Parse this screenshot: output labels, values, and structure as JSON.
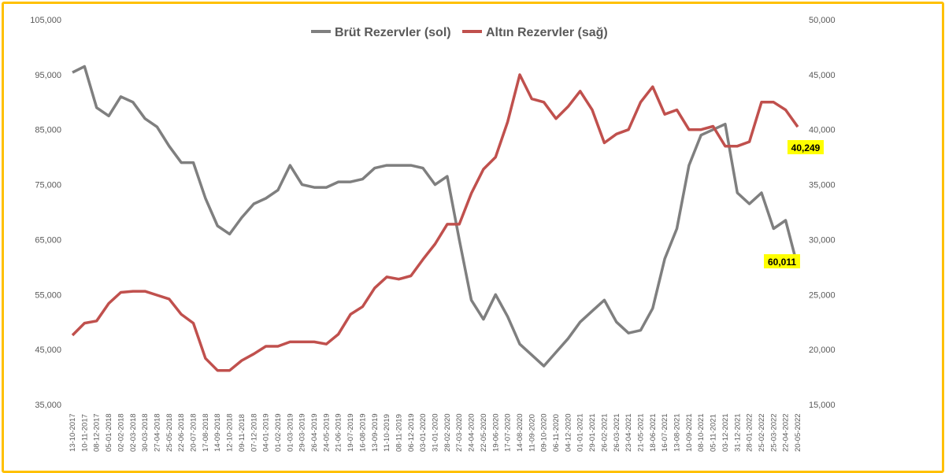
{
  "chart_data": {
    "type": "line",
    "title": "",
    "legend_position": "top",
    "x": [
      "13-10-2017",
      "10-11-2017",
      "08-12-2017",
      "05-01-2018",
      "02-02-2018",
      "02-03-2018",
      "30-03-2018",
      "27-04-2018",
      "25-05-2018",
      "22-06-2018",
      "20-07-2018",
      "17-08-2018",
      "14-09-2018",
      "12-10-2018",
      "09-11-2018",
      "07-12-2018",
      "04-01-2019",
      "01-02-2019",
      "01-03-2019",
      "29-03-2019",
      "26-04-2019",
      "24-05-2019",
      "21-06-2019",
      "19-07-2019",
      "16-08-2019",
      "13-09-2019",
      "11-10-2019",
      "08-11-2019",
      "06-12-2019",
      "03-01-2020",
      "31-01-2020",
      "28-02-2020",
      "27-03-2020",
      "24-04-2020",
      "22-05-2020",
      "19-06-2020",
      "17-07-2020",
      "14-08-2020",
      "11-09-2020",
      "09-10-2020",
      "06-11-2020",
      "04-12-2020",
      "01-01-2021",
      "29-01-2021",
      "26-02-2021",
      "26-03-2021",
      "23-04-2021",
      "21-05-2021",
      "18-06-2021",
      "16-07-2021",
      "13-08-2021",
      "10-09-2021",
      "08-10-2021",
      "05-11-2021",
      "03-12-2021",
      "31-12-2021",
      "28-01-2022",
      "25-02-2022",
      "25-03-2022",
      "22-04-2022",
      "20-05-2022"
    ],
    "left_axis": {
      "ylim": [
        35000,
        105000
      ],
      "ticks": [
        "35,000",
        "45,000",
        "55,000",
        "65,000",
        "75,000",
        "85,000",
        "95,000",
        "105,000"
      ]
    },
    "right_axis": {
      "ylim": [
        15000,
        50000
      ],
      "ticks": [
        "15,000",
        "20,000",
        "25,000",
        "30,000",
        "35,000",
        "40,000",
        "45,000",
        "50,000"
      ]
    },
    "series": [
      {
        "name": "Brüt Rezervler (sol)",
        "axis": "left",
        "color": "#7F7F7F",
        "values": [
          95400,
          96500,
          89000,
          87500,
          91000,
          90000,
          87000,
          85500,
          82000,
          79000,
          79000,
          72500,
          67500,
          66000,
          69000,
          71500,
          72500,
          74000,
          78500,
          75000,
          74500,
          74500,
          75500,
          75500,
          76000,
          78000,
          78500,
          78500,
          78500,
          78000,
          75000,
          76500,
          65000,
          54000,
          50500,
          55000,
          51000,
          46000,
          44000,
          42000,
          44500,
          47000,
          50000,
          52000,
          54000,
          50000,
          48000,
          48500,
          52500,
          61500,
          67000,
          78500,
          84000,
          85000,
          86000,
          73500,
          71500,
          73500,
          67000,
          68500,
          60011
        ],
        "end_label": "60,011"
      },
      {
        "name": "Altın Rezervler (sağ)",
        "axis": "right",
        "color": "#C0504D",
        "values": [
          21300,
          22400,
          22600,
          24200,
          25200,
          25300,
          25300,
          24950,
          24600,
          23200,
          22400,
          19200,
          18100,
          18100,
          19000,
          19600,
          20300,
          20300,
          20700,
          20700,
          20700,
          20500,
          21400,
          23200,
          23900,
          25600,
          26600,
          26400,
          26700,
          28200,
          29600,
          31400,
          31400,
          34200,
          36400,
          37500,
          40700,
          45000,
          42800,
          42500,
          41000,
          42100,
          43500,
          41800,
          38800,
          39600,
          40000,
          42500,
          43900,
          41400,
          41800,
          40000,
          40000,
          40300,
          38500,
          38500,
          38900,
          42500,
          42500,
          41800,
          40249
        ],
        "end_label": "40,249"
      }
    ]
  }
}
